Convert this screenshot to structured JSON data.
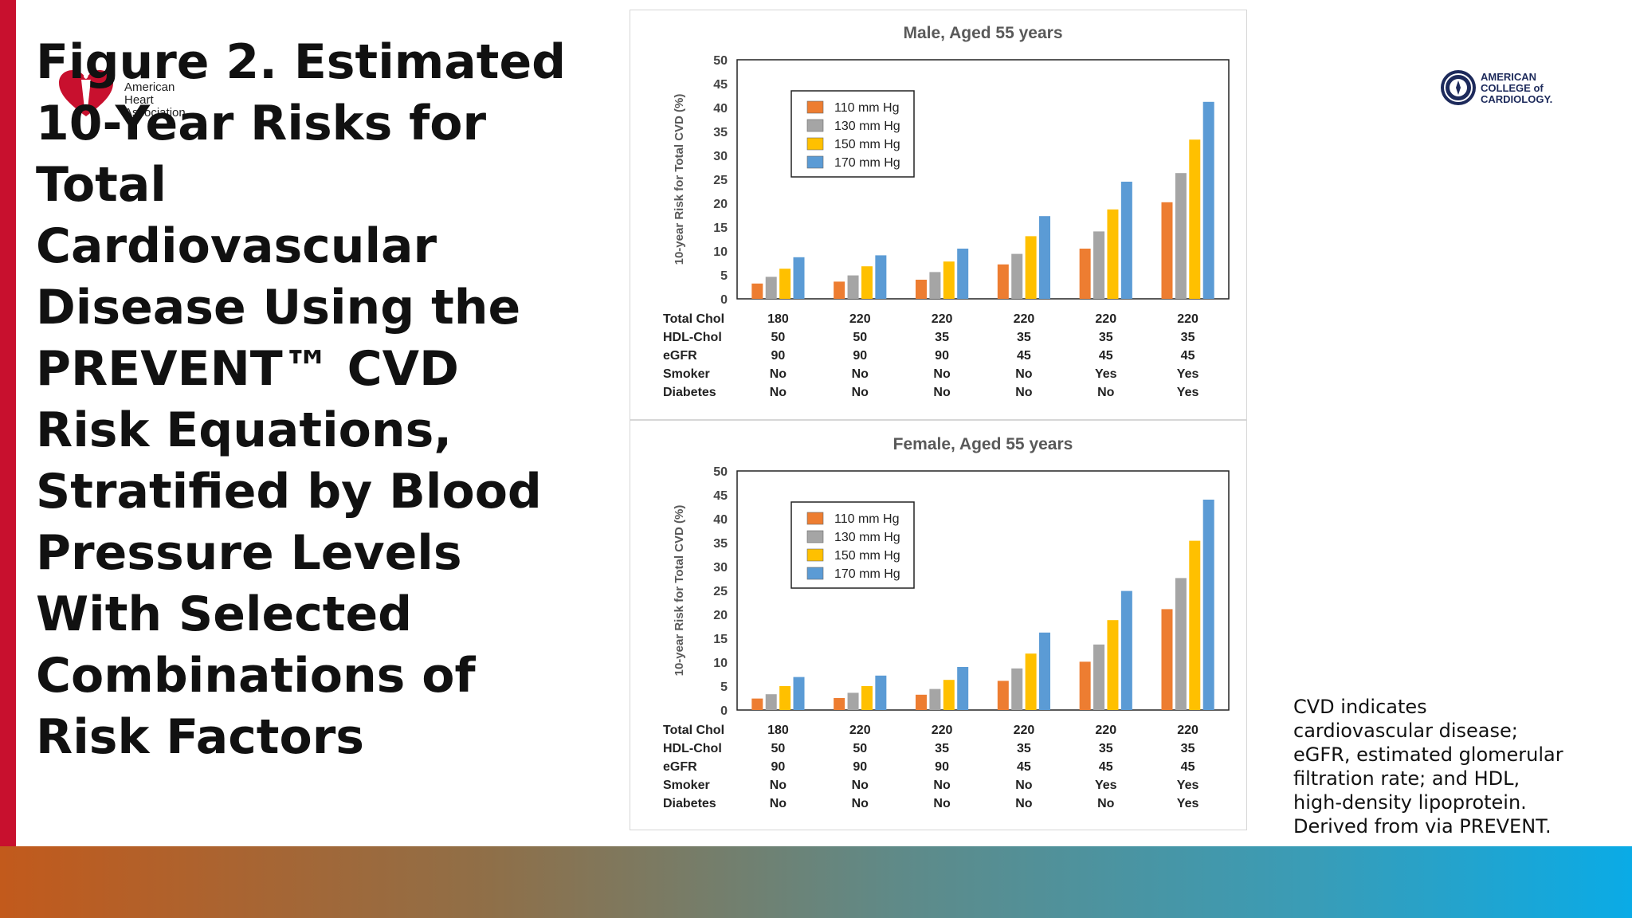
{
  "slide": {
    "title": "Figure 2. Estimated 10-Year Risks for Total Cardiovascular Disease Using the PREVENT™ CVD Risk Equations, Stratified by Blood Pressure Levels With Selected Combinations of Risk Factors",
    "note": "CVD indicates cardiovascular disease; eGFR, estimated glomerular filtration rate; and HDL, high-density lipoprotein. Derived from via PREVENT.",
    "aha_logo_lines": [
      "American",
      "Heart",
      "Association"
    ],
    "acc_logo_lines": [
      "AMERICAN",
      "COLLEGE of",
      "CARDIOLOGY."
    ]
  },
  "colors": {
    "accent_red": "#c8102e",
    "series": [
      "#ed7d31",
      "#a5a5a5",
      "#ffc000",
      "#5b9bd5"
    ]
  },
  "table_row_labels": [
    "Total Chol",
    "HDL-Chol",
    "eGFR",
    "Smoker",
    "Diabetes"
  ],
  "table_columns": [
    [
      "180",
      "50",
      "90",
      "No",
      "No"
    ],
    [
      "220",
      "50",
      "90",
      "No",
      "No"
    ],
    [
      "220",
      "35",
      "90",
      "No",
      "No"
    ],
    [
      "220",
      "35",
      "45",
      "No",
      "No"
    ],
    [
      "220",
      "35",
      "45",
      "Yes",
      "No"
    ],
    [
      "220",
      "35",
      "45",
      "Yes",
      "Yes"
    ]
  ],
  "chart_data": [
    {
      "type": "bar",
      "title": "Male, Aged 55 years",
      "ylabel": "10-year Risk for Total CVD (%)",
      "ylim": [
        0,
        50
      ],
      "yticks": [
        0,
        5,
        10,
        15,
        20,
        25,
        30,
        35,
        40,
        45,
        50
      ],
      "grid": false,
      "legend_position": "top-left",
      "categories": [
        "1",
        "2",
        "3",
        "4",
        "5",
        "6"
      ],
      "series": [
        {
          "name": "110 mm Hg",
          "values": [
            3.2,
            3.6,
            4.0,
            7.2,
            10.5,
            20.2
          ]
        },
        {
          "name": "130 mm Hg",
          "values": [
            4.6,
            4.9,
            5.6,
            9.4,
            14.1,
            26.3
          ]
        },
        {
          "name": "150 mm Hg",
          "values": [
            6.3,
            6.8,
            7.8,
            13.1,
            18.7,
            33.3
          ]
        },
        {
          "name": "170 mm Hg",
          "values": [
            8.7,
            9.1,
            10.5,
            17.3,
            24.5,
            41.2
          ]
        }
      ]
    },
    {
      "type": "bar",
      "title": "Female, Aged 55 years",
      "ylabel": "10-year Risk for Total CVD (%)",
      "ylim": [
        0,
        50
      ],
      "yticks": [
        0,
        5,
        10,
        15,
        20,
        25,
        30,
        35,
        40,
        45,
        50
      ],
      "grid": false,
      "legend_position": "top-left",
      "categories": [
        "1",
        "2",
        "3",
        "4",
        "5",
        "6"
      ],
      "series": [
        {
          "name": "110 mm Hg",
          "values": [
            2.4,
            2.5,
            3.2,
            6.1,
            10.1,
            21.1
          ]
        },
        {
          "name": "130 mm Hg",
          "values": [
            3.3,
            3.6,
            4.4,
            8.7,
            13.7,
            27.6
          ]
        },
        {
          "name": "150 mm Hg",
          "values": [
            5.0,
            5.0,
            6.3,
            11.8,
            18.8,
            35.4
          ]
        },
        {
          "name": "170 mm Hg",
          "values": [
            6.9,
            7.2,
            9.0,
            16.2,
            24.9,
            44.0
          ]
        }
      ]
    }
  ]
}
